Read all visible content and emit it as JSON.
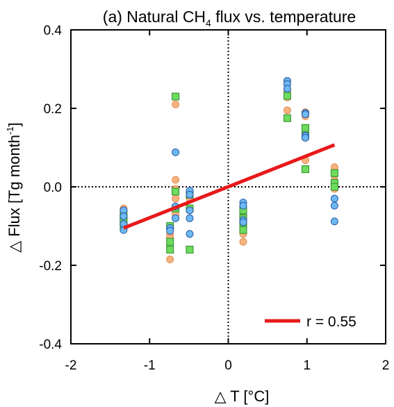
{
  "chart_data": {
    "type": "scatter",
    "title": {
      "prefix": "(a) Natural CH",
      "subscript": "4",
      "suffix": " flux vs. temperature"
    },
    "xlabel": "△ T [°C]",
    "ylabel": {
      "main": "△ Flux [Tg month",
      "superscript": "-1",
      "end": "]"
    },
    "xlim": [
      -2,
      2
    ],
    "ylim": [
      -0.4,
      0.4
    ],
    "xticks": [
      -2,
      -1,
      0,
      1,
      2
    ],
    "xtick_labels": [
      "-2",
      "-1",
      "0",
      "1",
      "2"
    ],
    "yticks": [
      -0.4,
      -0.2,
      0.0,
      0.2,
      0.4
    ],
    "ytick_labels": [
      "-0.4",
      "-0.2",
      "0.0",
      "0.2",
      "0.4"
    ],
    "zero_lines": true,
    "legend_position": "bottom-right",
    "series": [
      {
        "marker": "circle",
        "color": "#f7b27f",
        "edge": "#e0905a",
        "points": [
          [
            -1.33,
            -0.055
          ],
          [
            -1.33,
            -0.065
          ],
          [
            -1.33,
            -0.075
          ],
          [
            -1.33,
            -0.085
          ],
          [
            -1.33,
            -0.095
          ],
          [
            -1.33,
            -0.105
          ],
          [
            -0.74,
            -0.105
          ],
          [
            -0.74,
            -0.12
          ],
          [
            -0.74,
            -0.13
          ],
          [
            -0.74,
            -0.185
          ],
          [
            -0.67,
            0.21
          ],
          [
            -0.67,
            0.018
          ],
          [
            -0.67,
            -0.005
          ],
          [
            -0.67,
            -0.03
          ],
          [
            -0.67,
            -0.055
          ],
          [
            -0.67,
            -0.07
          ],
          [
            -0.49,
            -0.015
          ],
          [
            -0.49,
            -0.03
          ],
          [
            -0.49,
            -0.06
          ],
          [
            0.19,
            -0.06
          ],
          [
            0.19,
            -0.075
          ],
          [
            0.19,
            -0.1
          ],
          [
            0.19,
            -0.12
          ],
          [
            0.19,
            -0.14
          ],
          [
            0.75,
            0.245
          ],
          [
            0.75,
            0.228
          ],
          [
            0.75,
            0.195
          ],
          [
            0.98,
            0.19
          ],
          [
            0.98,
            0.18
          ],
          [
            0.98,
            0.068
          ],
          [
            1.35,
            0.05
          ],
          [
            1.35,
            0.03
          ],
          [
            1.35,
            0.015
          ],
          [
            1.35,
            -0.005
          ]
        ]
      },
      {
        "marker": "square",
        "color": "#6ddb5c",
        "edge": "#2f8a2a",
        "points": [
          [
            -1.33,
            -0.07
          ],
          [
            -1.33,
            -0.08
          ],
          [
            -1.33,
            -0.09
          ],
          [
            -1.33,
            -0.1
          ],
          [
            -0.74,
            -0.1
          ],
          [
            -0.74,
            -0.14
          ],
          [
            -0.74,
            -0.16
          ],
          [
            -0.67,
            0.23
          ],
          [
            -0.67,
            -0.012
          ],
          [
            -0.67,
            -0.055
          ],
          [
            -0.49,
            -0.02
          ],
          [
            -0.49,
            -0.055
          ],
          [
            -0.49,
            -0.16
          ],
          [
            0.19,
            -0.06
          ],
          [
            0.19,
            -0.08
          ],
          [
            0.19,
            -0.095
          ],
          [
            0.19,
            -0.11
          ],
          [
            0.75,
            0.232
          ],
          [
            0.75,
            0.175
          ],
          [
            0.98,
            0.15
          ],
          [
            0.98,
            0.13
          ],
          [
            0.98,
            0.045
          ],
          [
            1.35,
            0.035
          ],
          [
            1.35,
            0.01
          ],
          [
            1.35,
            0.0
          ]
        ]
      },
      {
        "marker": "circle",
        "color": "#6cb8f0",
        "edge": "#2a5aa8",
        "points": [
          [
            -1.33,
            -0.06
          ],
          [
            -1.33,
            -0.075
          ],
          [
            -1.33,
            -0.095
          ],
          [
            -1.33,
            -0.11
          ],
          [
            -0.74,
            -0.105
          ],
          [
            -0.74,
            -0.112
          ],
          [
            -0.67,
            0.088
          ],
          [
            -0.67,
            -0.05
          ],
          [
            -0.67,
            -0.08
          ],
          [
            -0.49,
            -0.01
          ],
          [
            -0.49,
            -0.02
          ],
          [
            -0.49,
            -0.06
          ],
          [
            -0.49,
            -0.08
          ],
          [
            -0.49,
            -0.12
          ],
          [
            0.19,
            -0.04
          ],
          [
            0.19,
            -0.048
          ],
          [
            0.19,
            -0.085
          ],
          [
            0.19,
            -0.09
          ],
          [
            0.75,
            0.27
          ],
          [
            0.75,
            0.262
          ],
          [
            0.75,
            0.25
          ],
          [
            0.98,
            0.188
          ],
          [
            0.98,
            0.185
          ],
          [
            0.98,
            0.13
          ],
          [
            0.98,
            0.125
          ],
          [
            1.35,
            -0.03
          ],
          [
            1.35,
            -0.048
          ],
          [
            1.35,
            -0.088
          ]
        ]
      }
    ],
    "regression": {
      "name": "r = 0.55",
      "color": "#e8191a",
      "x": [
        -1.33,
        1.35
      ],
      "y": [
        -0.105,
        0.107
      ]
    }
  }
}
